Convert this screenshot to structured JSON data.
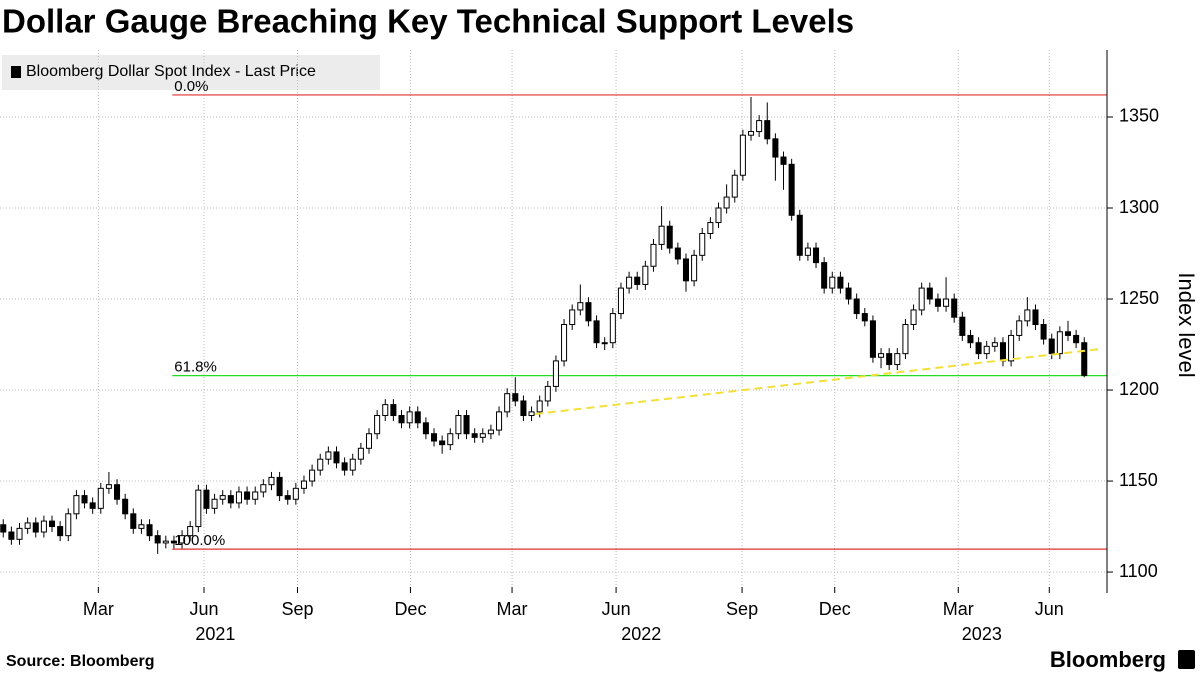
{
  "chart_data": {
    "type": "candlestick",
    "title": "Dollar Gauge Breaching Key Technical Support Levels",
    "ylabel": "Index level",
    "source": "Source: Bloomberg",
    "brand": "Bloomberg",
    "up_color": "#ffffff",
    "down_color": "#000000",
    "categories": [
      null,
      null,
      null,
      null,
      null,
      null,
      null,
      null,
      null,
      null,
      null,
      null,
      null,
      null,
      null,
      null,
      null,
      null,
      null,
      null,
      null,
      null,
      null,
      null,
      null,
      null,
      null,
      null,
      null,
      null,
      null,
      null,
      null,
      null,
      null,
      null,
      null,
      null,
      null,
      null,
      null,
      null,
      null,
      null,
      null,
      null,
      null,
      null,
      null,
      null,
      null,
      null,
      null,
      null,
      null,
      null,
      null,
      null,
      null,
      null,
      null,
      null,
      null,
      null,
      null,
      null,
      null,
      null,
      null,
      null,
      null,
      null,
      null,
      null,
      null,
      null,
      null,
      null,
      null,
      null,
      null,
      null,
      null,
      null,
      null,
      null,
      null,
      null,
      null,
      null,
      null,
      null,
      null,
      null,
      null,
      null,
      null,
      null,
      null,
      null,
      null,
      null,
      null,
      null,
      null,
      null,
      null,
      null,
      null,
      null,
      null,
      null,
      null,
      null,
      null,
      null,
      null,
      null,
      null,
      null,
      null,
      null,
      null,
      null,
      null,
      null,
      null,
      null,
      null,
      null,
      null,
      null,
      null,
      null
    ],
    "series": [
      {
        "name": "Bloomberg Dollar Spot Index - Last Price",
        "open": [
          1126,
          1122,
          1118,
          1124,
          1127,
          1122,
          1128,
          1125,
          1120,
          1132,
          1142,
          1138,
          1135,
          1146,
          1148,
          1140,
          1132,
          1124,
          1126,
          1120,
          1116,
          1117,
          1116,
          1120,
          1125,
          1145,
          1135,
          1140,
          1142,
          1138,
          1144,
          1140,
          1144,
          1148,
          1152,
          1142,
          1140,
          1146,
          1150,
          1156,
          1162,
          1166,
          1160,
          1156,
          1162,
          1168,
          1176,
          1186,
          1192,
          1186,
          1182,
          1188,
          1182,
          1176,
          1172,
          1170,
          1176,
          1186,
          1176,
          1174,
          1176,
          1178,
          1188,
          1198,
          1194,
          1186,
          1188,
          1194,
          1202,
          1216,
          1236,
          1244,
          1248,
          1238,
          1226,
          1226,
          1242,
          1256,
          1262,
          1258,
          1268,
          1280,
          1290,
          1278,
          1272,
          1260,
          1274,
          1286,
          1292,
          1300,
          1306,
          1318,
          1340,
          1342,
          1348,
          1338,
          1328,
          1324,
          1296,
          1274,
          1278,
          1270,
          1256,
          1262,
          1256,
          1250,
          1242,
          1238,
          1218,
          1220,
          1214,
          1220,
          1236,
          1244,
          1256,
          1250,
          1246,
          1250,
          1240,
          1230,
          1226,
          1220,
          1224,
          1226,
          1216,
          1230,
          1238,
          1244,
          1236,
          1228,
          1220,
          1232,
          1230,
          1226
        ],
        "high": [
          1129,
          1125,
          1127,
          1130,
          1130,
          1131,
          1131,
          1128,
          1135,
          1145,
          1145,
          1141,
          1149,
          1155,
          1151,
          1143,
          1135,
          1129,
          1129,
          1123,
          1120,
          1120,
          1123,
          1128,
          1148,
          1148,
          1143,
          1145,
          1145,
          1147,
          1147,
          1147,
          1151,
          1155,
          1155,
          1145,
          1149,
          1153,
          1159,
          1165,
          1169,
          1169,
          1163,
          1165,
          1171,
          1179,
          1189,
          1195,
          1195,
          1189,
          1191,
          1191,
          1185,
          1179,
          1175,
          1179,
          1189,
          1189,
          1179,
          1179,
          1181,
          1191,
          1201,
          1207,
          1197,
          1191,
          1197,
          1205,
          1219,
          1239,
          1247,
          1258,
          1251,
          1241,
          1229,
          1245,
          1259,
          1265,
          1265,
          1271,
          1283,
          1301,
          1293,
          1281,
          1275,
          1277,
          1289,
          1295,
          1303,
          1313,
          1321,
          1343,
          1361,
          1351,
          1358,
          1341,
          1331,
          1327,
          1299,
          1281,
          1281,
          1273,
          1265,
          1265,
          1259,
          1253,
          1245,
          1241,
          1223,
          1223,
          1223,
          1239,
          1247,
          1259,
          1259,
          1253,
          1262,
          1253,
          1243,
          1233,
          1229,
          1227,
          1229,
          1229,
          1233,
          1241,
          1251,
          1247,
          1239,
          1231,
          1235,
          1238,
          1233,
          1229
        ],
        "low": [
          1119,
          1115,
          1115,
          1121,
          1119,
          1119,
          1122,
          1117,
          1117,
          1129,
          1135,
          1132,
          1132,
          1143,
          1137,
          1129,
          1121,
          1121,
          1117,
          1110,
          1113,
          1113,
          1113,
          1117,
          1122,
          1132,
          1132,
          1137,
          1135,
          1135,
          1137,
          1137,
          1141,
          1145,
          1139,
          1137,
          1137,
          1143,
          1147,
          1153,
          1159,
          1157,
          1153,
          1153,
          1159,
          1165,
          1173,
          1183,
          1183,
          1179,
          1179,
          1179,
          1173,
          1169,
          1165,
          1167,
          1173,
          1173,
          1171,
          1171,
          1173,
          1175,
          1185,
          1191,
          1183,
          1183,
          1185,
          1191,
          1199,
          1213,
          1233,
          1241,
          1235,
          1223,
          1222,
          1223,
          1239,
          1253,
          1255,
          1255,
          1265,
          1277,
          1275,
          1269,
          1254,
          1257,
          1271,
          1283,
          1289,
          1297,
          1303,
          1315,
          1337,
          1339,
          1335,
          1315,
          1310,
          1293,
          1271,
          1271,
          1267,
          1253,
          1253,
          1253,
          1247,
          1239,
          1235,
          1215,
          1212,
          1211,
          1211,
          1217,
          1233,
          1241,
          1247,
          1243,
          1243,
          1237,
          1227,
          1223,
          1217,
          1217,
          1221,
          1213,
          1213,
          1227,
          1235,
          1233,
          1225,
          1217,
          1217,
          1227,
          1223,
          1207
        ],
        "close": [
          1122,
          1118,
          1124,
          1127,
          1122,
          1128,
          1125,
          1120,
          1132,
          1142,
          1138,
          1135,
          1146,
          1148,
          1140,
          1132,
          1124,
          1126,
          1120,
          1116,
          1117,
          1116,
          1120,
          1125,
          1145,
          1135,
          1140,
          1142,
          1138,
          1144,
          1140,
          1144,
          1148,
          1152,
          1142,
          1140,
          1146,
          1150,
          1156,
          1162,
          1166,
          1160,
          1156,
          1162,
          1168,
          1176,
          1186,
          1192,
          1186,
          1182,
          1188,
          1182,
          1176,
          1172,
          1170,
          1176,
          1186,
          1176,
          1174,
          1176,
          1178,
          1188,
          1198,
          1194,
          1186,
          1188,
          1194,
          1202,
          1216,
          1236,
          1244,
          1248,
          1238,
          1226,
          1226,
          1242,
          1256,
          1262,
          1258,
          1268,
          1280,
          1290,
          1278,
          1272,
          1260,
          1274,
          1286,
          1292,
          1300,
          1306,
          1318,
          1340,
          1342,
          1348,
          1338,
          1328,
          1324,
          1296,
          1274,
          1278,
          1270,
          1256,
          1262,
          1256,
          1250,
          1242,
          1238,
          1218,
          1220,
          1214,
          1220,
          1236,
          1244,
          1256,
          1250,
          1246,
          1250,
          1240,
          1230,
          1226,
          1220,
          1224,
          1226,
          1216,
          1230,
          1238,
          1244,
          1236,
          1228,
          1220,
          1232,
          1230,
          1226,
          1208
        ]
      }
    ],
    "xlim": [
      -0.4,
      135.8
    ],
    "xticks": [
      {
        "value": 11.7,
        "label": "Mar"
      },
      {
        "value": 24.7,
        "label": "Jun"
      },
      {
        "value": 36.2,
        "label": "Sep"
      },
      {
        "value": 50.1,
        "label": "Dec"
      },
      {
        "value": 62.6,
        "label": "Mar"
      },
      {
        "value": 75.4,
        "label": "Jun"
      },
      {
        "value": 90.9,
        "label": "Sep"
      },
      {
        "value": 102.3,
        "label": "Dec"
      },
      {
        "value": 117.5,
        "label": "Mar"
      },
      {
        "value": 128.7,
        "label": "Jun"
      }
    ],
    "year_labels": [
      {
        "value": 26.1,
        "label": "2021"
      },
      {
        "value": 78.5,
        "label": "2022"
      },
      {
        "value": 120.4,
        "label": "2023"
      }
    ],
    "ylim": [
      1088.5,
      1386.8
    ],
    "yticks": [
      1100,
      1150,
      1200,
      1250,
      1300,
      1350
    ],
    "grid": true,
    "levels_start": 20.8,
    "levels": [
      {
        "label": "0.0%",
        "value": 1362.1,
        "color": "#e03030"
      },
      {
        "label": "61.8%",
        "value": 1207.9,
        "color": "#22dd22"
      },
      {
        "label": "100.0%",
        "value": 1112.6,
        "color": "#e03030"
      }
    ],
    "trendline": {
      "x": [
        65.4,
        134.9
      ],
      "values": [
        1186.8,
        1222.5
      ],
      "color": "#f2e03a"
    }
  }
}
